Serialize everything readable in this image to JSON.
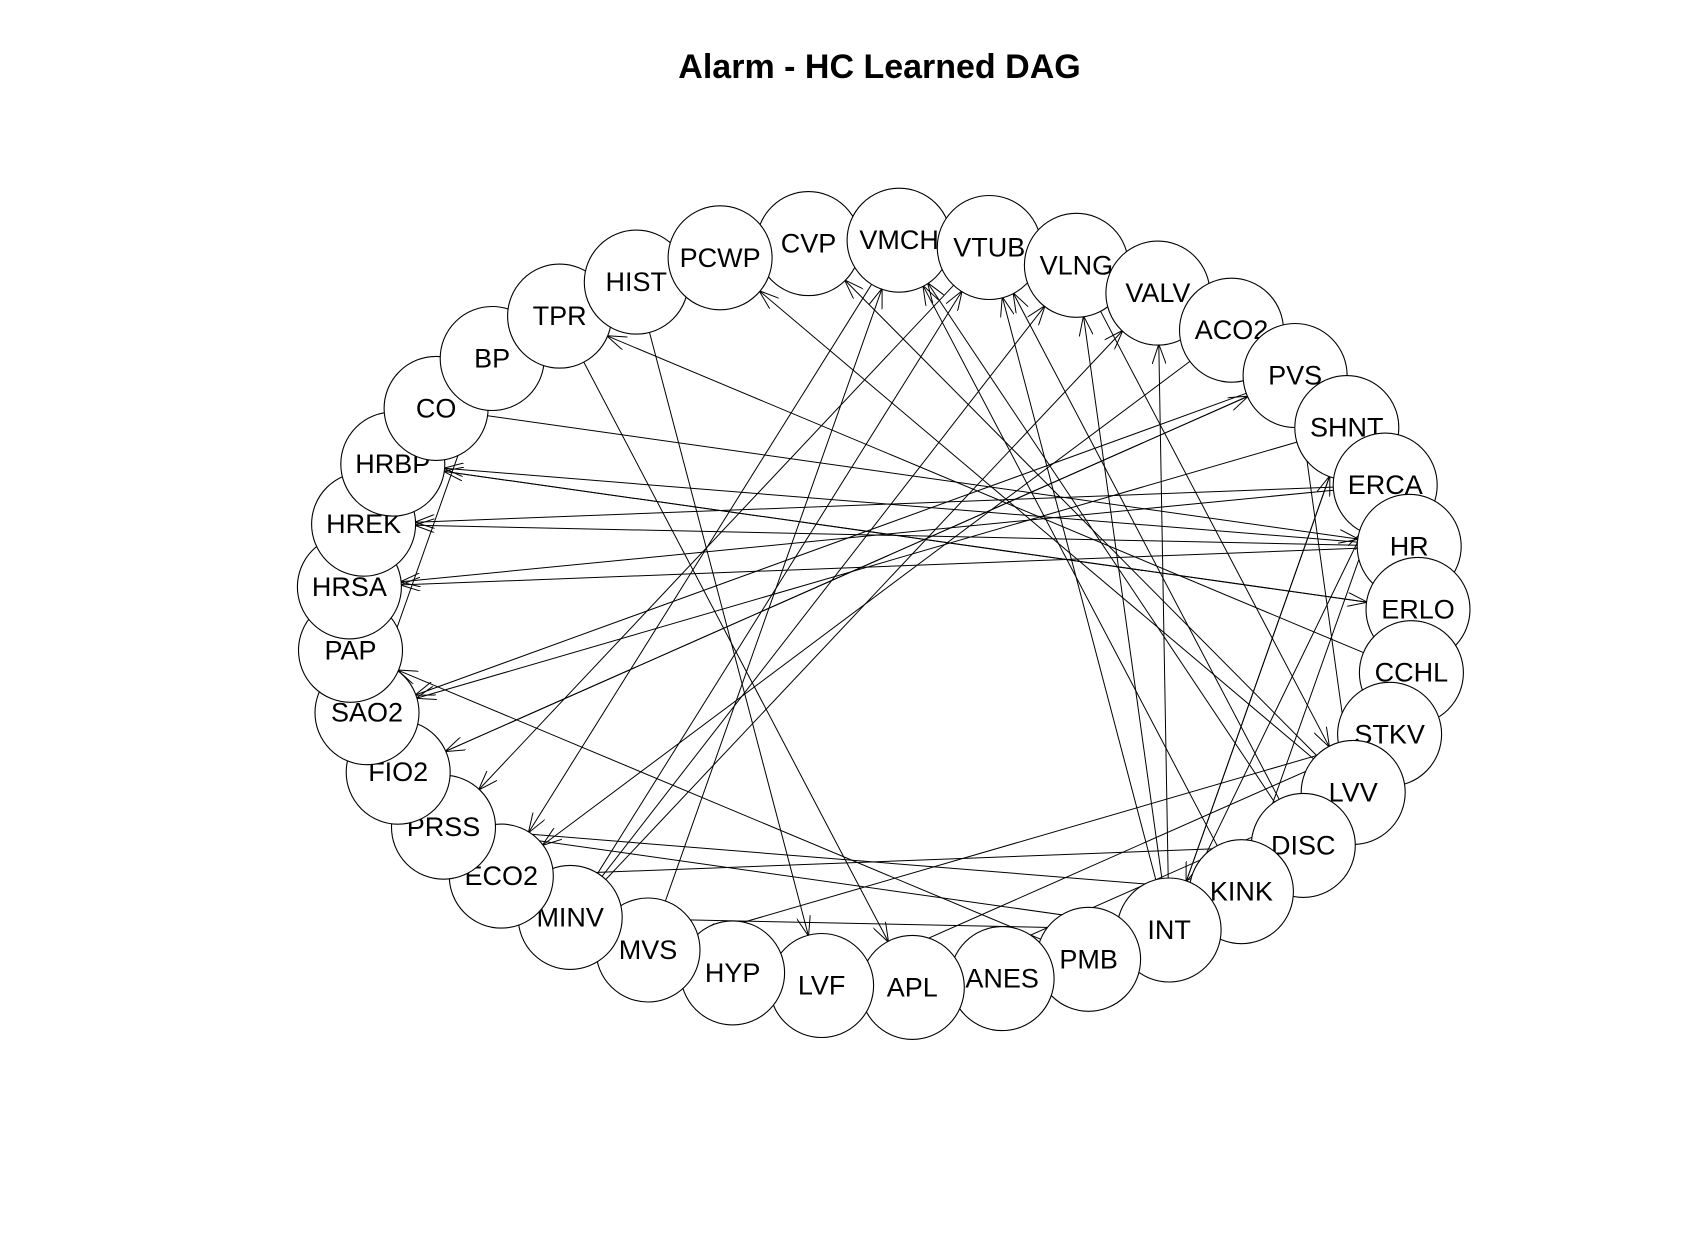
{
  "title": "Alarm - HC Learned DAG",
  "nodes": [
    "CVP",
    "VMCH",
    "VTUB",
    "VLNG",
    "VALV",
    "ACO2",
    "PVS",
    "SHNT",
    "ERCA",
    "HR",
    "ERLO",
    "CCHL",
    "STKV",
    "LVV",
    "DISC",
    "KINK",
    "INT",
    "PMB",
    "ANES",
    "APL",
    "LVF",
    "HYP",
    "MVS",
    "MINV",
    "ECO2",
    "PRSS",
    "FIO2",
    "SAO2",
    "PAP",
    "HRSA",
    "HREK",
    "HRBP",
    "CO",
    "BP",
    "TPR",
    "HIST",
    "PCWP"
  ],
  "edges": [
    [
      "HR",
      "HREK"
    ],
    [
      "HR",
      "HRSA"
    ],
    [
      "HR",
      "HRBP"
    ],
    [
      "ERCA",
      "HREK"
    ],
    [
      "ERCA",
      "HRSA"
    ],
    [
      "ERLO",
      "HRBP"
    ],
    [
      "HRBP",
      "ERLO"
    ],
    [
      "CO",
      "HR"
    ],
    [
      "CCHL",
      "HR"
    ],
    [
      "CCHL",
      "TPR"
    ],
    [
      "PVS",
      "FIO2"
    ],
    [
      "PVS",
      "SAO2"
    ],
    [
      "FIO2",
      "PVS"
    ],
    [
      "SHNT",
      "SAO2"
    ],
    [
      "SHNT",
      "INT"
    ],
    [
      "INT",
      "SHNT"
    ],
    [
      "INT",
      "VALV"
    ],
    [
      "INT",
      "VLNG"
    ],
    [
      "INT",
      "VTUB"
    ],
    [
      "INT",
      "ERCA"
    ],
    [
      "INT",
      "PRSS"
    ],
    [
      "INT",
      "MINV"
    ],
    [
      "KINK",
      "ERCA"
    ],
    [
      "KINK",
      "VMCH"
    ],
    [
      "KINK",
      "PRSS"
    ],
    [
      "DISC",
      "VTUB"
    ],
    [
      "DISC",
      "VMCH"
    ],
    [
      "LVV",
      "PVS"
    ],
    [
      "LVV",
      "PCWP"
    ],
    [
      "LVV",
      "CVP"
    ],
    [
      "APL",
      "LVV"
    ],
    [
      "ANES",
      "LVV"
    ],
    [
      "PMB",
      "PAP"
    ],
    [
      "STKV",
      "MVS"
    ],
    [
      "MVS",
      "VMCH"
    ],
    [
      "MVS",
      "MINV"
    ],
    [
      "MINV",
      "VTUB"
    ],
    [
      "MINV",
      "VLNG"
    ],
    [
      "MINV",
      "VALV"
    ],
    [
      "ACO2",
      "ECO2"
    ],
    [
      "VALV",
      "ACO2"
    ],
    [
      "VLNG",
      "LVV"
    ],
    [
      "VTUB",
      "ACO2"
    ],
    [
      "VTUB",
      "PRSS"
    ],
    [
      "VMCH",
      "ECO2"
    ],
    [
      "HIST",
      "LVF"
    ],
    [
      "TPR",
      "APL"
    ],
    [
      "HYP",
      "LVF"
    ],
    [
      "LVF",
      "STKV"
    ],
    [
      "SAO2",
      "BP"
    ],
    [
      "BP",
      "CO"
    ],
    [
      "ECO2",
      "DISC"
    ],
    [
      "CO",
      "HRBP"
    ]
  ]
}
